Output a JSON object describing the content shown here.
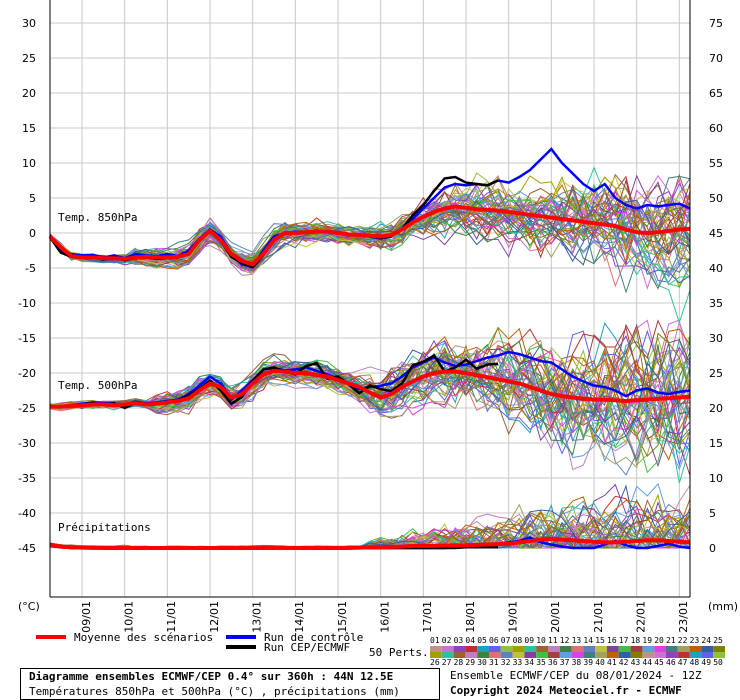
{
  "chart_data": {
    "type": "line",
    "title": "Diagramme ensembles ECMWF/CEP 0.4° sur 360h : 44N 12.5E",
    "subtitle": "Températures 850hPa et 500hPa (°C) , précipitations (mm)",
    "left_axis": {
      "unit_label": "(°C)",
      "range": [
        -50,
        31
      ],
      "ticks": [
        30,
        25,
        20,
        15,
        10,
        5,
        0,
        -5,
        -10,
        -15,
        -20,
        -25,
        -30,
        -35,
        -40,
        -45
      ]
    },
    "right_axis": {
      "unit_label": "(mm)",
      "ticks": [
        75,
        70,
        65,
        60,
        55,
        50,
        45,
        40,
        35,
        30,
        25,
        20,
        15,
        10,
        5,
        0
      ]
    },
    "x_dates": [
      "09/01",
      "10/01",
      "11/01",
      "12/01",
      "13/01",
      "14/01",
      "15/01",
      "16/01",
      "17/01",
      "18/01",
      "19/01",
      "20/01",
      "21/01",
      "22/01",
      "23/01"
    ],
    "panel_labels": {
      "t850": "Temp. 850hPa",
      "t500": "Temp. 500hPa",
      "precip": "Précipitations"
    },
    "x_step_hours": 6,
    "t850": {
      "mean": [
        -0.5,
        -2,
        -3.3,
        -3.5,
        -3.5,
        -3.6,
        -3.6,
        -3.7,
        -3.5,
        -3.4,
        -3.5,
        -3.5,
        -3.4,
        -3,
        -1,
        0.3,
        -1,
        -3,
        -4,
        -4.5,
        -3,
        -1,
        0,
        0,
        0.1,
        0.2,
        0.2,
        0,
        -0.2,
        -0.3,
        -0.4,
        -0.5,
        -0.3,
        0.5,
        1.5,
        2.3,
        3,
        3.5,
        3.8,
        3.6,
        3.4,
        3.3,
        3.2,
        3,
        2.8,
        2.6,
        2.4,
        2.2,
        2,
        1.8,
        1.6,
        1.4,
        1.2,
        1,
        0.5,
        0.1,
        0,
        0.1,
        0.3,
        0.5,
        0.6
      ],
      "control": [
        -0.3,
        -2.5,
        -3,
        -3.2,
        -3.1,
        -3.5,
        -3.2,
        -3.6,
        -3,
        -3.2,
        -3.3,
        -3,
        -3.3,
        -2.5,
        -0.8,
        0.5,
        -0.5,
        -3,
        -4.5,
        -4.8,
        -2.5,
        -0.5,
        0,
        0.2,
        0.1,
        0.3,
        0.2,
        0.1,
        -0.3,
        -0.2,
        -0.5,
        -0.8,
        -0.4,
        0.5,
        2,
        3.5,
        5,
        6.5,
        7,
        6.8,
        7,
        6.8,
        7.5,
        7.2,
        8,
        9,
        10.5,
        12,
        10,
        8.5,
        7,
        6,
        7,
        5,
        4,
        3.5,
        4,
        3.8,
        4,
        4.2,
        3.5
      ],
      "cep": [
        -0.6,
        -2.8,
        -3.4,
        -3.6,
        -3.5,
        -3.8,
        -3.4,
        -3.9,
        -3.6,
        -3.5,
        -3.7,
        -3.6,
        -3.5,
        -2.8,
        -1.2,
        0.4,
        -1.1,
        -3.4,
        -4.3,
        -4.9,
        -3.2,
        -1,
        0,
        0,
        0,
        0.2,
        0.1,
        0,
        -0.3,
        -0.2,
        -0.5,
        -0.7,
        -0.5,
        0.6,
        2.5,
        4,
        6,
        7.8,
        8,
        7.2,
        7,
        6.8,
        7.5
      ]
    },
    "t500": {
      "mean": [
        -24.8,
        -24.8,
        -24.7,
        -24.6,
        -24.5,
        -24.5,
        -24.6,
        -24.5,
        -24.3,
        -24.5,
        -24.4,
        -24.2,
        -24,
        -23.6,
        -22.5,
        -21.5,
        -22,
        -23.5,
        -23,
        -21.5,
        -20.2,
        -19.7,
        -19.8,
        -20,
        -20,
        -20.3,
        -20.5,
        -21,
        -21.5,
        -22,
        -22.8,
        -23.5,
        -23,
        -22,
        -21.2,
        -20.5,
        -20,
        -19.8,
        -19.8,
        -20,
        -20.3,
        -20.6,
        -20.9,
        -21.2,
        -21.5,
        -22,
        -22.5,
        -23,
        -23.3,
        -23.5,
        -23.7,
        -23.8,
        -23.8,
        -23.9,
        -24,
        -23.9,
        -23.8,
        -23.7,
        -23.6,
        -23.5,
        -23.4
      ],
      "control": [
        -24.8,
        -24.9,
        -24.6,
        -24.4,
        -24.2,
        -24.3,
        -24.4,
        -24.5,
        -24.1,
        -24.3,
        -24.2,
        -24,
        -23.8,
        -23,
        -21.8,
        -20.5,
        -21.5,
        -23.8,
        -22.5,
        -21,
        -19.5,
        -19.3,
        -19.6,
        -19.5,
        -19.2,
        -19.7,
        -20.2,
        -20.8,
        -21.5,
        -22.3,
        -22,
        -21.8,
        -21.5,
        -20.5,
        -19.2,
        -18.5,
        -17.8,
        -18.5,
        -19,
        -18.8,
        -18.3,
        -17.8,
        -17.5,
        -17,
        -17.3,
        -17.8,
        -18.3,
        -18.5,
        -19.5,
        -20.5,
        -21.2,
        -21.8,
        -22,
        -22.5,
        -23.3,
        -22.5,
        -22.2,
        -22.8,
        -23,
        -22.7,
        -22.5
      ],
      "cep": [
        -24.7,
        -24.9,
        -24.7,
        -24.5,
        -24.3,
        -24.6,
        -24.3,
        -25,
        -24.3,
        -24.5,
        -24.3,
        -24.1,
        -23.9,
        -23.2,
        -22.3,
        -21.1,
        -22.5,
        -24.4,
        -23.4,
        -21.2,
        -19.5,
        -19.2,
        -19.8,
        -20.2,
        -19,
        -18.6,
        -20.8,
        -20.5,
        -21.6,
        -22.9,
        -21.8,
        -22.3,
        -22.6,
        -21.5,
        -18.9,
        -18.4,
        -17.5,
        -19.8,
        -19.2,
        -18.1,
        -19.4,
        -18.8,
        -18.7
      ]
    },
    "precip": {
      "mean": [
        0.5,
        0.2,
        0.1,
        0.05,
        0.02,
        0,
        0,
        0,
        0,
        0,
        0,
        0,
        0,
        0,
        0,
        0,
        0,
        0,
        0,
        0,
        0,
        0,
        0,
        0,
        0,
        0,
        0,
        0,
        0,
        0.05,
        0.1,
        0.1,
        0.15,
        0.2,
        0.3,
        0.3,
        0.3,
        0.35,
        0.35,
        0.4,
        0.45,
        0.5,
        0.55,
        0.6,
        0.8,
        1,
        1.2,
        1.3,
        1.2,
        1.1,
        1,
        0.9,
        0.8,
        0.8,
        0.9,
        1,
        1.1,
        1.1,
        1,
        0.9,
        0.8
      ],
      "control": [
        0.4,
        0.1,
        0,
        0,
        0,
        0,
        0,
        0,
        0,
        0,
        0,
        0,
        0,
        0,
        0,
        0,
        0,
        0,
        0,
        0,
        0,
        0,
        0,
        0,
        0,
        0,
        0,
        0,
        0,
        0,
        0,
        0,
        0,
        0,
        0,
        0,
        0,
        0,
        0.2,
        0.5,
        0.3,
        0.2,
        0.5,
        0.8,
        1,
        1.5,
        0.8,
        0.5,
        0.2,
        0,
        0,
        0,
        0.5,
        1,
        0.4,
        0,
        0,
        0.3,
        0.6,
        0.2,
        0
      ],
      "cep": [
        0.3,
        0.1,
        0,
        0,
        0,
        0,
        0,
        0,
        0,
        0,
        0,
        0,
        0,
        0,
        0,
        0,
        0,
        0,
        0,
        0,
        0,
        0,
        0,
        0,
        0,
        0,
        0,
        0,
        0,
        0,
        0,
        0,
        0,
        0,
        0,
        0,
        0,
        0,
        0,
        0.1,
        0.1,
        0.1,
        0.1
      ]
    },
    "perturbation_count": 50,
    "perturbation_labels_row1": [
      "01",
      "02",
      "03",
      "04",
      "05",
      "06",
      "07",
      "08",
      "09",
      "10",
      "11",
      "12",
      "13",
      "14",
      "15",
      "16",
      "17",
      "18",
      "19",
      "20",
      "21",
      "22",
      "23",
      "24",
      "25"
    ],
    "perturbation_labels_row2": [
      "26",
      "27",
      "28",
      "29",
      "30",
      "31",
      "32",
      "33",
      "34",
      "35",
      "36",
      "37",
      "38",
      "39",
      "40",
      "41",
      "42",
      "43",
      "44",
      "45",
      "46",
      "47",
      "48",
      "49",
      "50"
    ],
    "colors": {
      "mean": "#ff0000",
      "control": "#0000ff",
      "cep": "#000000",
      "grid": "#c8c8c8",
      "member_palette": [
        "#c09090",
        "#d070d0",
        "#9040c0",
        "#c03030",
        "#20a0c0",
        "#6060f0",
        "#90c040",
        "#a0a000",
        "#30c0a0",
        "#a06030",
        "#c080c0",
        "#408040",
        "#e07070",
        "#6080c0",
        "#c0c040",
        "#8040a0",
        "#40c040",
        "#a04040",
        "#60a0e0",
        "#e040e0",
        "#408080",
        "#a0a060",
        "#c06000",
        "#3060a0",
        "#808000"
      ]
    }
  },
  "legend": {
    "mean_label": "Moyenne des scénarios",
    "control_label": "Run de contrôle",
    "cep_label": "Run CEP/ECMWF",
    "perts_label": "50 Perts."
  },
  "footer": {
    "ensemble_info": "Ensemble ECMWF/CEP du 08/01/2024 - 12Z",
    "copyright": "Copyright 2024 Meteociel.fr - ECMWF"
  }
}
